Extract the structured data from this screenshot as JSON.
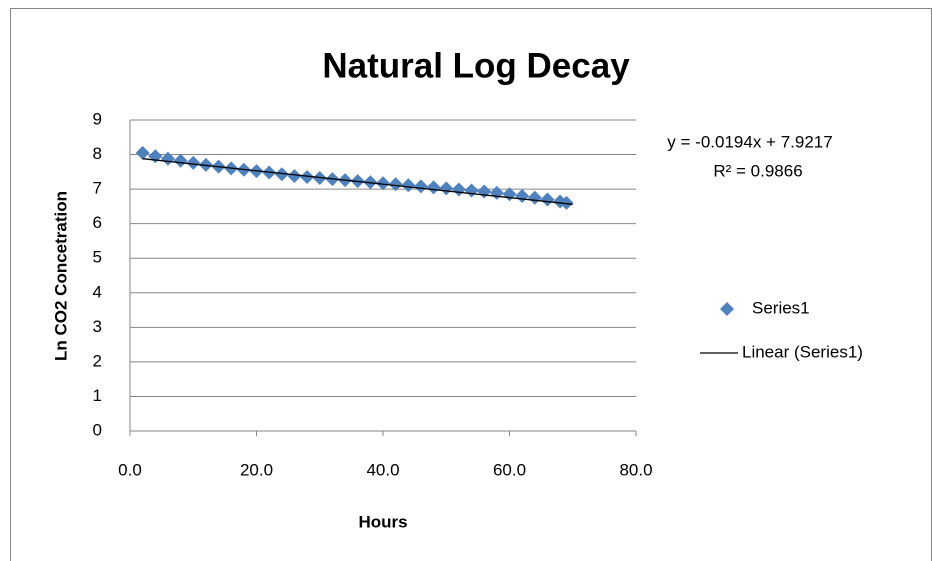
{
  "chart_data": {
    "type": "scatter",
    "title": "Natural Log Decay",
    "xlabel": "Hours",
    "ylabel": "Ln CO2 Concetration",
    "annotations": [
      "y = -0.0194x + 7.9217",
      "R² = 0.9866"
    ],
    "series": [
      {
        "name": "Series1",
        "color": "#4f81bd",
        "mode": "markers",
        "x": [
          2,
          4,
          6,
          8,
          10,
          12,
          14,
          16,
          18,
          20,
          22,
          24,
          26,
          28,
          30,
          32,
          34,
          36,
          38,
          40,
          42,
          44,
          46,
          48,
          50,
          52,
          54,
          56,
          58,
          60,
          62,
          64,
          66,
          68,
          69
        ],
        "values": [
          8.05,
          7.95,
          7.88,
          7.82,
          7.76,
          7.7,
          7.65,
          7.6,
          7.56,
          7.52,
          7.48,
          7.43,
          7.38,
          7.35,
          7.32,
          7.29,
          7.26,
          7.23,
          7.2,
          7.17,
          7.14,
          7.11,
          7.08,
          7.05,
          7.02,
          6.99,
          6.96,
          6.93,
          6.89,
          6.85,
          6.8,
          6.75,
          6.7,
          6.64,
          6.6
        ]
      },
      {
        "name": "Linear (Series1)",
        "color": "#000000",
        "mode": "line",
        "x": [
          2,
          70
        ],
        "values": [
          7.88,
          6.56
        ]
      }
    ],
    "xlim": [
      0,
      80
    ],
    "xticks": [
      {
        "value": 0,
        "label": "0.0"
      },
      {
        "value": 20,
        "label": "20.0"
      },
      {
        "value": 40,
        "label": "40.0"
      },
      {
        "value": 60,
        "label": "60.0"
      },
      {
        "value": 80,
        "label": "80.0"
      }
    ],
    "ylim": [
      0,
      9
    ],
    "yticks": [
      0,
      1,
      2,
      3,
      4,
      5,
      6,
      7,
      8,
      9
    ],
    "grid": true,
    "legend": "right"
  }
}
